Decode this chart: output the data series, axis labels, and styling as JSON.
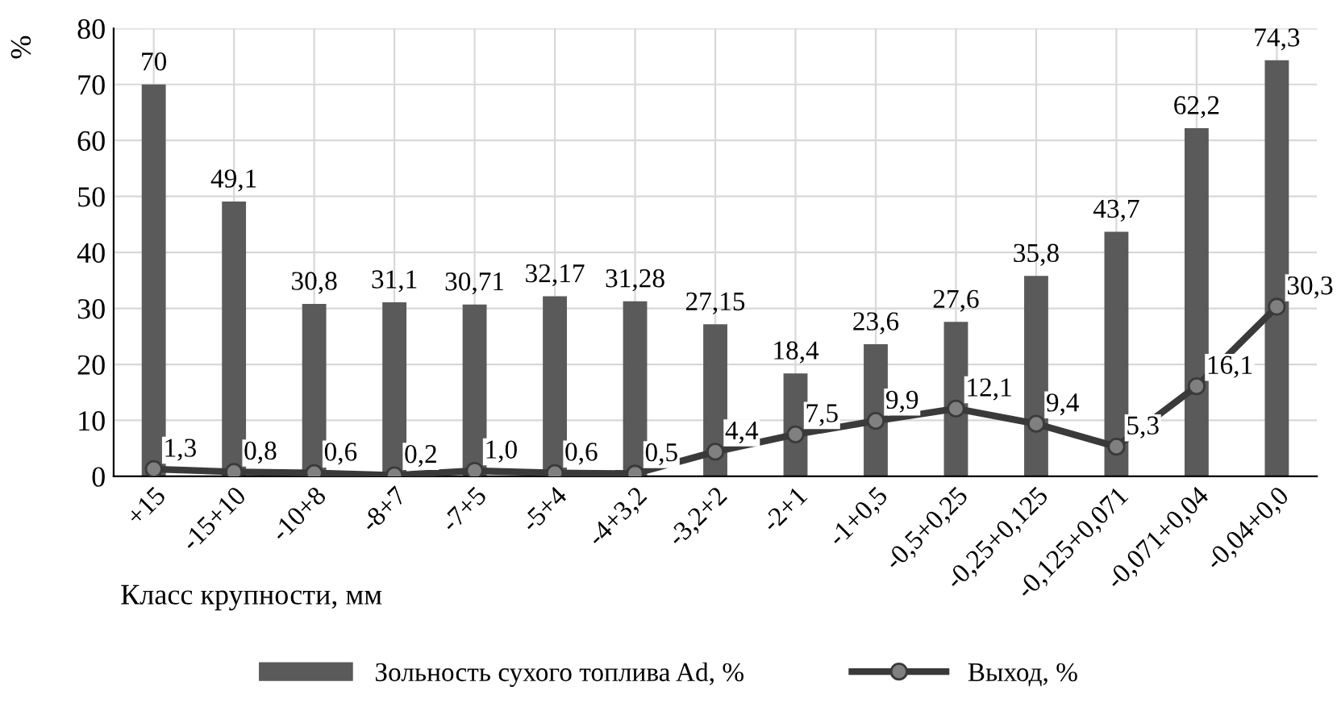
{
  "chart_data": {
    "type": "bar",
    "ylabel": "%",
    "xlabel": "Класс крупности, мм",
    "categories": [
      "+15",
      "-15+10",
      "-10+8",
      "-8+7",
      "-7+5",
      "-5+4",
      "-4+3,2",
      "-3,2+2",
      "-2+1",
      "-1+0,5",
      "-0,5+0,25",
      "-0,25+0,125",
      "-0,125+0,071",
      "-0,071+0,04",
      "-0,04+0,0"
    ],
    "series": [
      {
        "name": "Зольность сухого топлива Ad, %",
        "color": "#5a5a5a",
        "values": [
          70,
          49.1,
          30.8,
          31.1,
          30.71,
          32.17,
          31.28,
          27.15,
          18.4,
          23.6,
          27.6,
          35.8,
          43.7,
          62.2,
          74.3
        ],
        "value_labels": [
          "70",
          "49,1",
          "30,8",
          "31,1",
          "30,71",
          "32,17",
          "31,28",
          "27,15",
          "18,4",
          "23,6",
          "27,6",
          "35,8",
          "43,7",
          "62,2",
          "74,3"
        ]
      },
      {
        "name": "Выход, %",
        "type": "line",
        "color": "#3a3a3a",
        "marker": "circle",
        "values": [
          1.3,
          0.8,
          0.6,
          0.2,
          1.0,
          0.6,
          0.5,
          4.4,
          7.5,
          9.9,
          12.1,
          9.4,
          5.3,
          16.1,
          30.3
        ],
        "value_labels": [
          "1,3",
          "0,8",
          "0,6",
          "0,2",
          "1,0",
          "0,6",
          "0,5",
          "4,4",
          "7,5",
          "9,9",
          "12,1",
          "9,4",
          "5,3",
          "16,1",
          "30,3"
        ]
      }
    ],
    "ylim": [
      0,
      80
    ],
    "yticks": [
      0,
      10,
      20,
      30,
      40,
      50,
      60,
      70,
      80
    ],
    "grid": true,
    "legend": "bottom"
  }
}
